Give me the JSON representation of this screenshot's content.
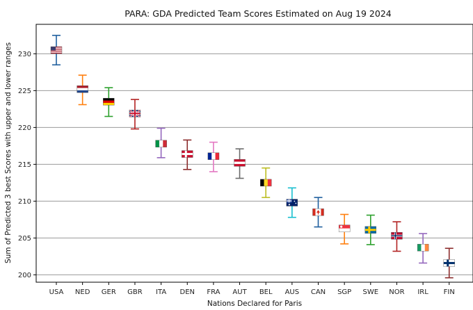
{
  "chart_data": {
    "type": "errorbar",
    "title": "PARA: GDA Predicted Team Scores Estimated on Aug 19 2024",
    "xlabel": "Nations Declared for Paris",
    "ylabel": "Sum of Predicted 3 best Scores with upper and lower ranges",
    "ylim": [
      199,
      234
    ],
    "yticks": [
      200,
      205,
      210,
      215,
      220,
      225,
      230
    ],
    "grid": "horizontal",
    "categories": [
      "USA",
      "NED",
      "GER",
      "GBR",
      "ITA",
      "DEN",
      "FRA",
      "AUT",
      "BEL",
      "AUS",
      "CAN",
      "SGP",
      "SWE",
      "NOR",
      "IRL",
      "FIN"
    ],
    "values": [
      230.5,
      225.2,
      223.5,
      221.9,
      217.8,
      216.4,
      216.1,
      215.2,
      212.5,
      209.8,
      208.5,
      206.3,
      206.1,
      205.3,
      203.7,
      201.6
    ],
    "upper": [
      232.5,
      227.1,
      225.4,
      223.8,
      219.9,
      218.3,
      218.0,
      217.1,
      214.5,
      211.8,
      210.5,
      208.2,
      208.1,
      207.2,
      205.6,
      203.6
    ],
    "lower": [
      228.5,
      223.1,
      221.5,
      219.8,
      215.9,
      214.3,
      214.0,
      213.1,
      210.5,
      207.8,
      206.5,
      204.2,
      204.1,
      203.2,
      201.6,
      199.6
    ],
    "colors": [
      "#1f5f9e",
      "#ff7f0e",
      "#2ca02c",
      "#b22222",
      "#9467bd",
      "#8c2d2d",
      "#e377c2",
      "#6b6b6b",
      "#bcbd22",
      "#17becf",
      "#1f5f9e",
      "#ff7f0e",
      "#2ca02c",
      "#b22222",
      "#9467bd",
      "#8c2d2d"
    ],
    "markers": [
      "flag-usa-icon",
      "flag-ned-icon",
      "flag-ger-icon",
      "flag-gbr-icon",
      "flag-ita-icon",
      "flag-den-icon",
      "flag-fra-icon",
      "flag-aut-icon",
      "flag-bel-icon",
      "flag-aus-icon",
      "flag-can-icon",
      "flag-sgp-icon",
      "flag-swe-icon",
      "flag-nor-icon",
      "flag-irl-icon",
      "flag-fin-icon"
    ]
  }
}
